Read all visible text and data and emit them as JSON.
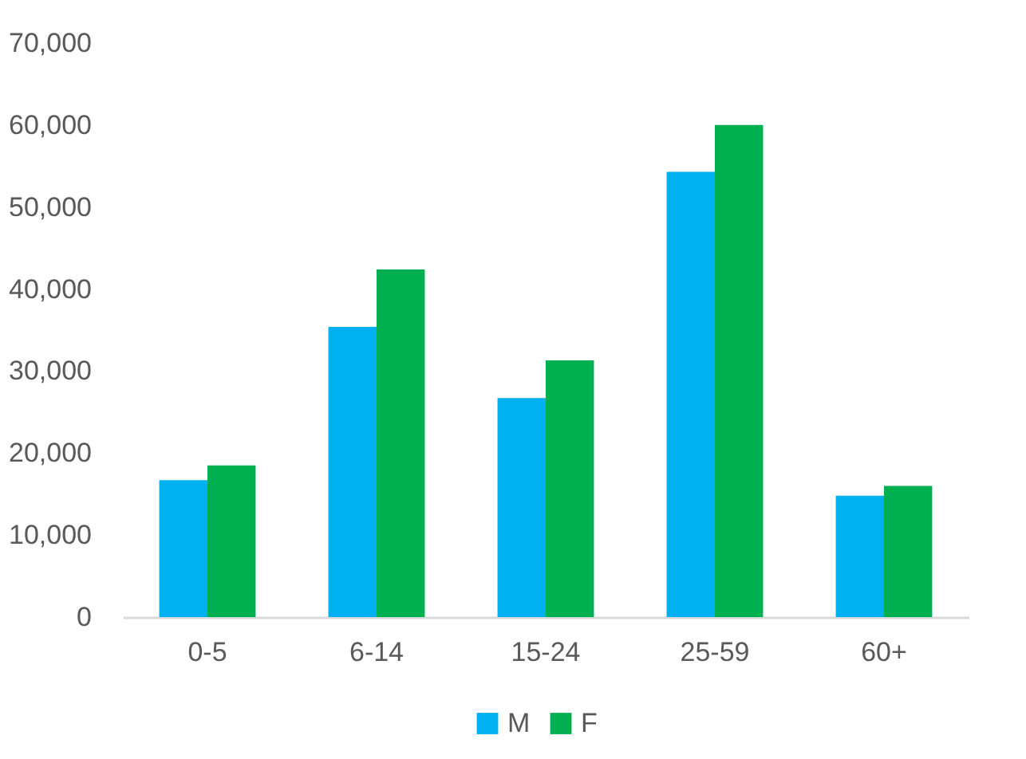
{
  "chart_data": {
    "type": "bar",
    "categories": [
      "0-5",
      "6-14",
      "15-24",
      "25-59",
      "60+"
    ],
    "series": [
      {
        "name": "M",
        "color": "#00b0f0",
        "values": [
          16700,
          35400,
          26700,
          54300,
          14800
        ]
      },
      {
        "name": "F",
        "color": "#00b050",
        "values": [
          18500,
          42400,
          31300,
          60000,
          16000
        ]
      }
    ],
    "ylim": [
      0,
      70000
    ],
    "yticks": [
      0,
      {
        "value": 10000,
        "label": "10,000"
      },
      {
        "value": 20000,
        "label": "20,000"
      },
      {
        "value": 30000,
        "label": "30,000"
      },
      {
        "value": 40000,
        "label": "40,000"
      },
      {
        "value": 50000,
        "label": "50,000"
      },
      {
        "value": 60000,
        "label": "60,000"
      },
      {
        "value": 70000,
        "label": "70,000"
      }
    ],
    "grid": false,
    "legend": "bottom"
  }
}
